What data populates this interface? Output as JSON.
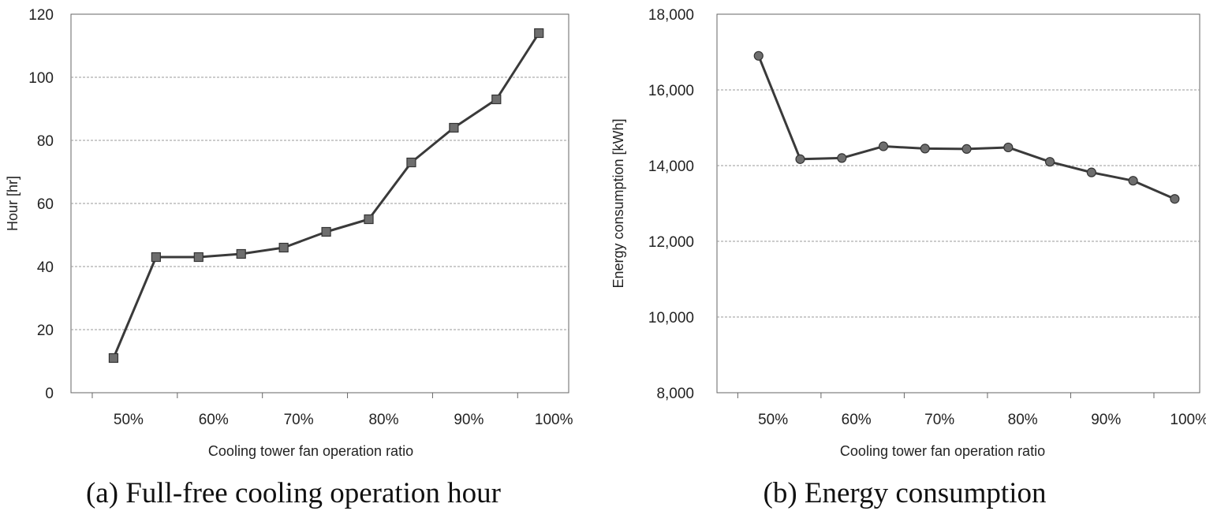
{
  "chart_data": [
    {
      "type": "line",
      "title": "(a) Full-free cooling operation hour",
      "xlabel": "Cooling tower fan operation ratio",
      "ylabel": "Hour [hr]",
      "x_tick_labels": [
        "50%",
        "60%",
        "70%",
        "80%",
        "90%",
        "100%"
      ],
      "y_tick_labels": [
        "0",
        "20",
        "40",
        "60",
        "80",
        "100",
        "120"
      ],
      "ylim": [
        0,
        120
      ],
      "grid": "horizontal dashed",
      "marker": "square",
      "x": [
        47.5,
        52.5,
        57.5,
        62.5,
        67.5,
        72.5,
        77.5,
        82.5,
        87.5,
        92.5,
        97.5
      ],
      "series": [
        {
          "values": [
            11,
            43,
            43,
            44,
            46,
            51,
            55,
            73,
            84,
            93,
            114
          ]
        }
      ],
      "line_color": "#3a3a3a",
      "marker_color": "#6e6e6e"
    },
    {
      "type": "line",
      "title": "(b) Energy consumption",
      "xlabel": "Cooling tower fan operation ratio",
      "ylabel": "Energy consumption [kWh]",
      "x_tick_labels": [
        "50%",
        "60%",
        "70%",
        "80%",
        "90%",
        "100%"
      ],
      "y_tick_labels": [
        "8,000",
        "10,000",
        "12,000",
        "14,000",
        "16,000",
        "18,000"
      ],
      "ylim": [
        8000,
        18000
      ],
      "grid": "horizontal dashed",
      "marker": "circle",
      "x": [
        47.5,
        52.5,
        57.5,
        62.5,
        67.5,
        72.5,
        77.5,
        82.5,
        87.5,
        92.5,
        97.5
      ],
      "series": [
        {
          "values": [
            16900,
            14170,
            14200,
            14510,
            14450,
            14440,
            14480,
            14100,
            13820,
            13600,
            13120
          ]
        }
      ],
      "line_color": "#3a3a3a",
      "marker_color": "#6e6e6e"
    }
  ]
}
